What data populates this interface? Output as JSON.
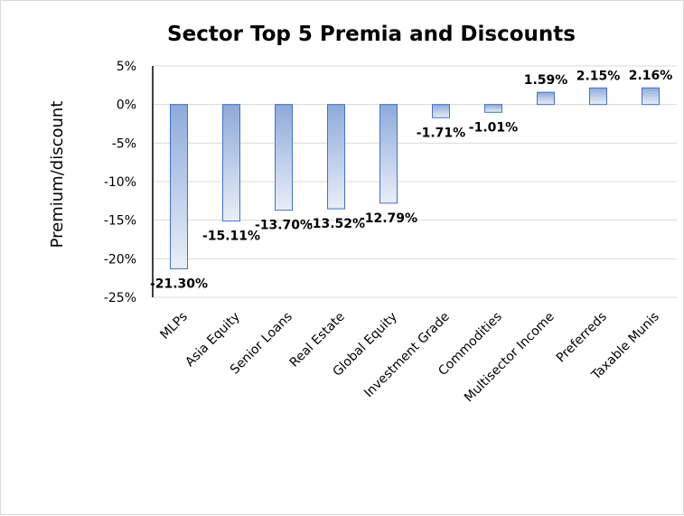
{
  "chart_data": {
    "type": "bar",
    "title": "Sector Top 5 Premia and Discounts",
    "xlabel": "",
    "ylabel": "Premium/discount",
    "categories": [
      "MLPs",
      "Asia Equity",
      "Senior Loans",
      "Real Estate",
      "Global Equity",
      "Investment Grade",
      "Commodities",
      "Multisector Income",
      "Preferreds",
      "Taxable Munis"
    ],
    "values": [
      -21.3,
      -15.11,
      -13.7,
      -13.52,
      -12.79,
      -1.71,
      -1.01,
      1.59,
      2.15,
      2.16
    ],
    "data_labels": [
      "-21.30%",
      "-15.11%",
      "-13.70%",
      "-13.52%",
      "-12.79%",
      "-1.71%",
      "-1.01%",
      "1.59%",
      "2.15%",
      "2.16%"
    ],
    "ylim": [
      -25,
      5
    ],
    "yticks": [
      5,
      0,
      -5,
      -10,
      -15,
      -20,
      -25
    ],
    "ytick_labels": [
      "5%",
      "0%",
      "-5%",
      "-10%",
      "-15%",
      "-20%",
      "-25%"
    ],
    "grid": true,
    "legend": "none",
    "colors": {
      "bar_edge": "#4472c4",
      "bar_fill_top": "#8eaadb",
      "bar_fill_bottom": "#e9eef8",
      "grid": "#d9d9d9"
    }
  }
}
